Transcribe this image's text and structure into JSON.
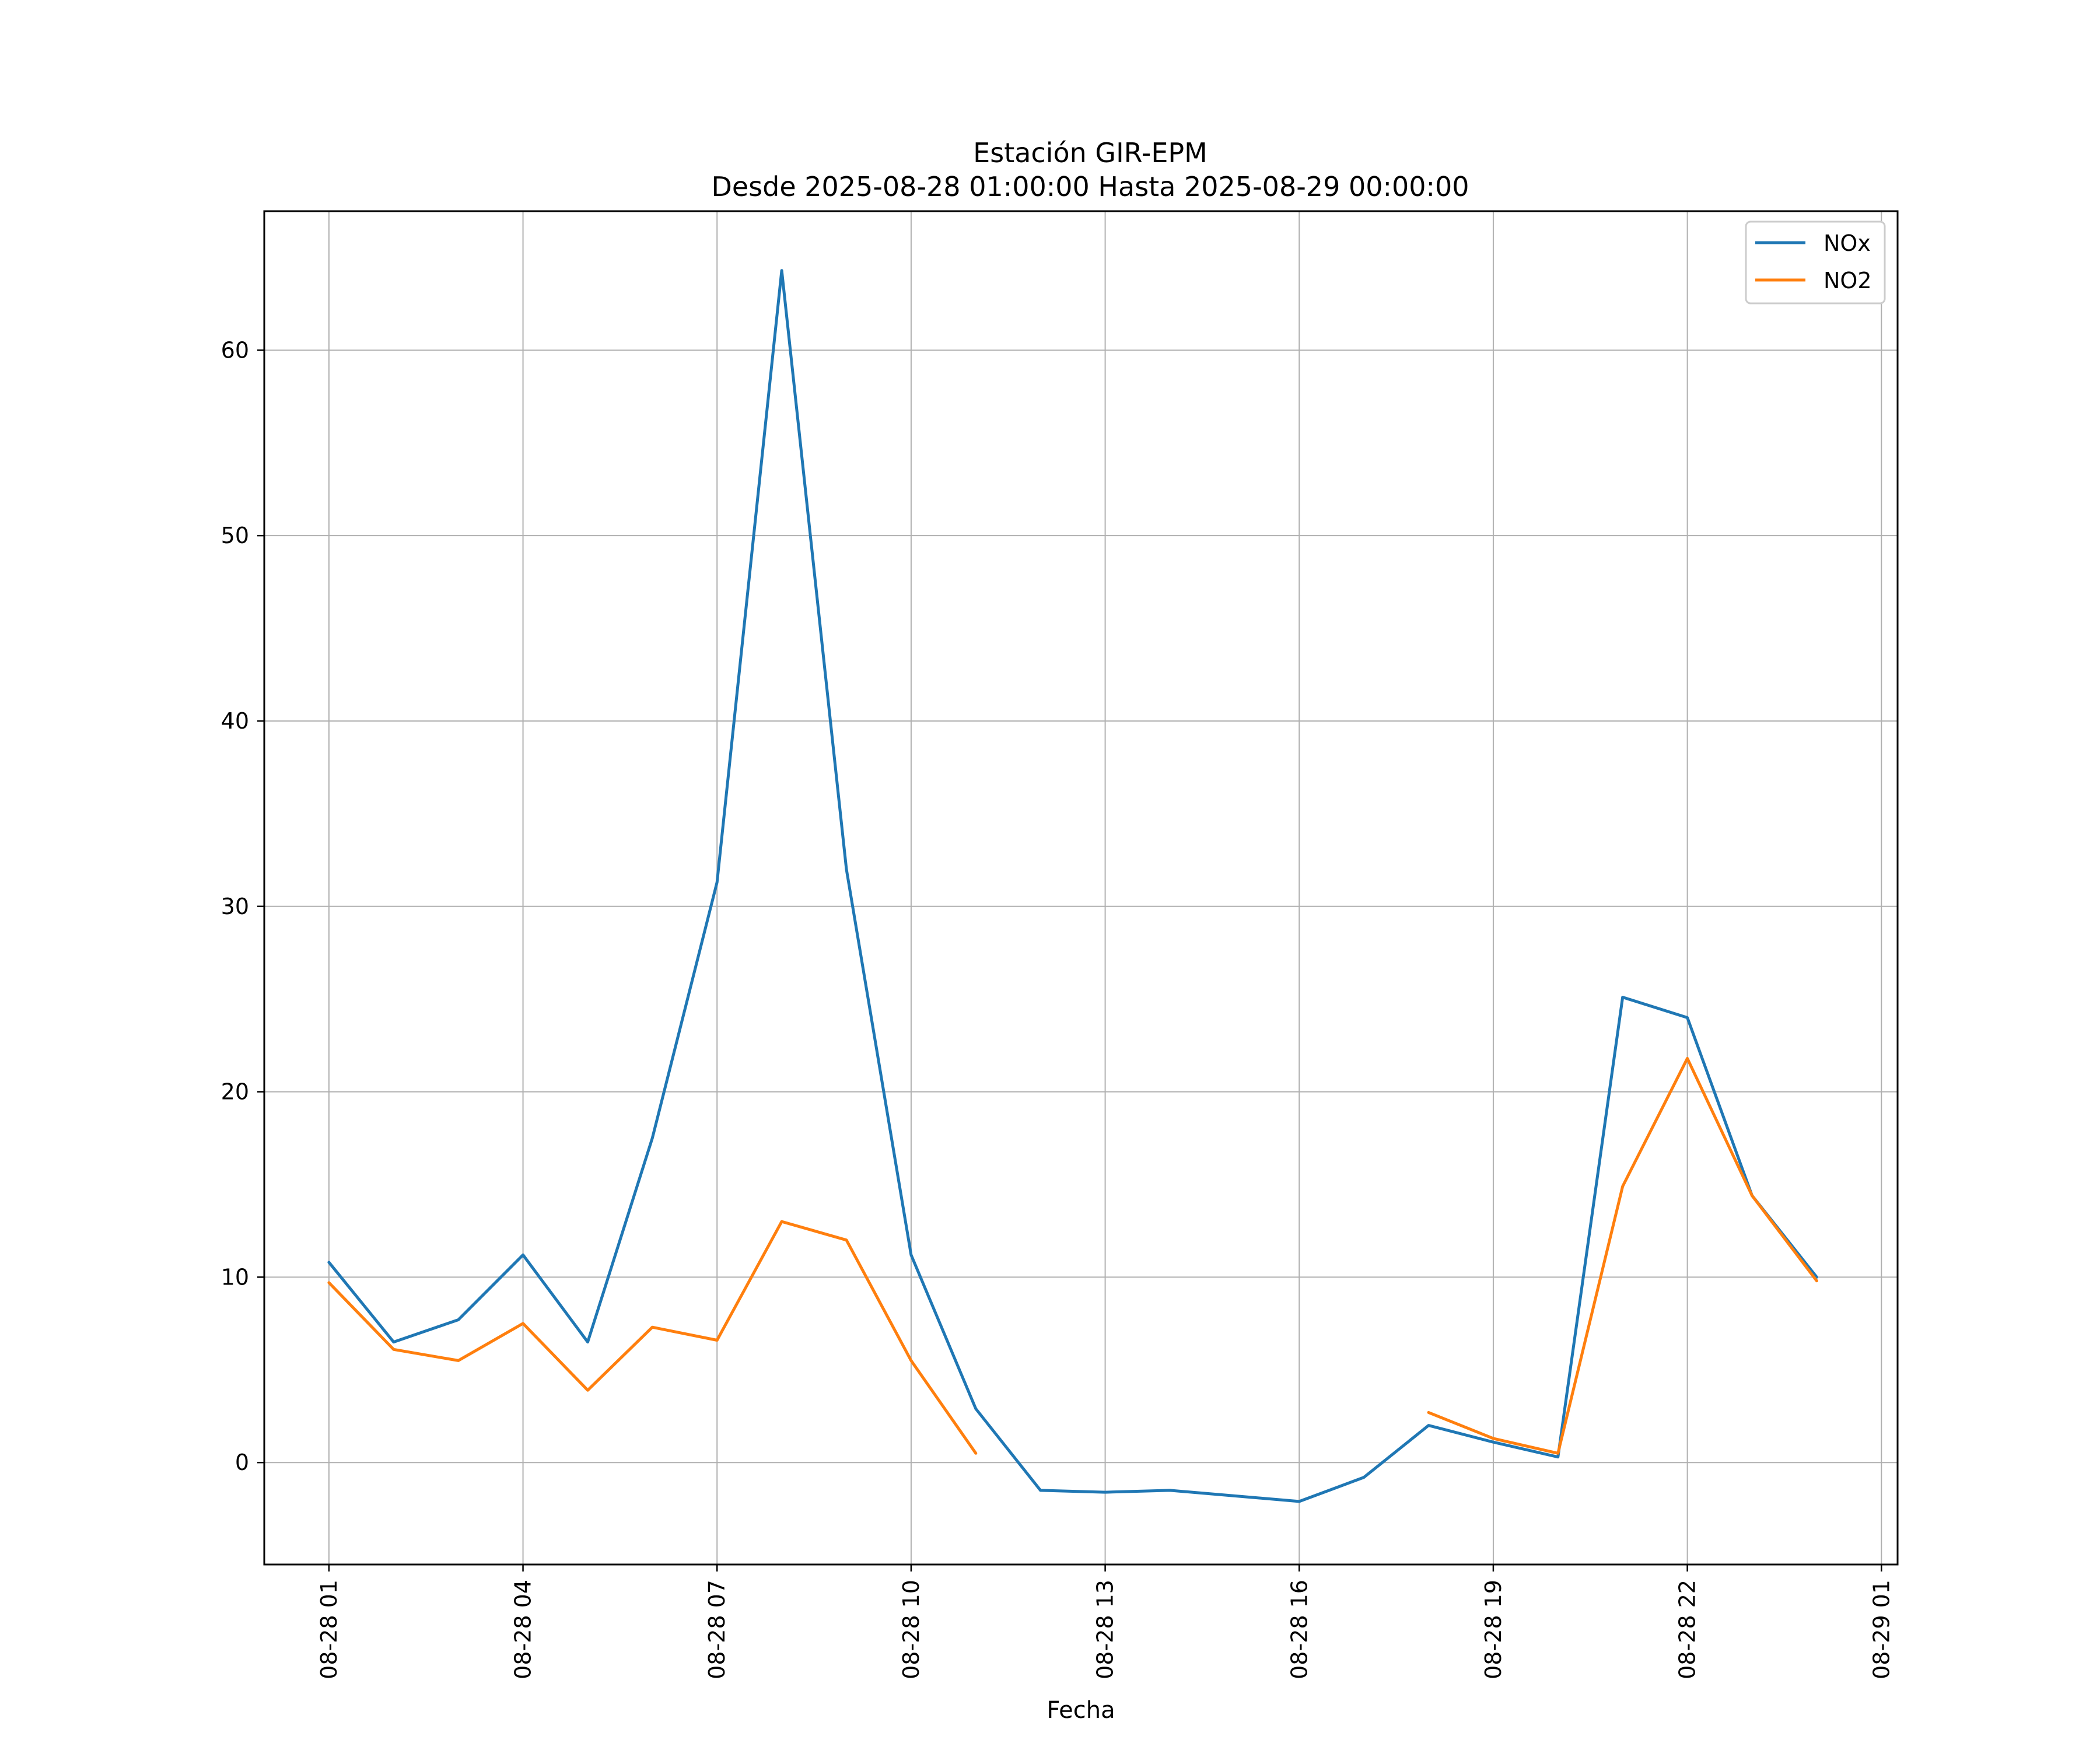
{
  "chart_data": {
    "type": "line",
    "title": "Estación GIR-EPM",
    "subtitle": "Desde 2025-08-28 01:00:00 Hasta 2025-08-29 00:00:00",
    "xlabel": "Fecha",
    "ylabel": "",
    "x": [
      "2025-08-28 01:00",
      "2025-08-28 02:00",
      "2025-08-28 03:00",
      "2025-08-28 04:00",
      "2025-08-28 05:00",
      "2025-08-28 06:00",
      "2025-08-28 07:00",
      "2025-08-28 08:00",
      "2025-08-28 09:00",
      "2025-08-28 10:00",
      "2025-08-28 11:00",
      "2025-08-28 12:00",
      "2025-08-28 13:00",
      "2025-08-28 14:00",
      "2025-08-28 15:00",
      "2025-08-28 16:00",
      "2025-08-28 17:00",
      "2025-08-28 18:00",
      "2025-08-28 19:00",
      "2025-08-28 20:00",
      "2025-08-28 21:00",
      "2025-08-28 22:00",
      "2025-08-28 23:00",
      "2025-08-29 00:00"
    ],
    "xlim": [
      "2025-08-28 00:00",
      "2025-08-29 01:15"
    ],
    "ylim": [
      -5.5,
      67.5
    ],
    "yticks": [
      0,
      10,
      20,
      30,
      40,
      50,
      60
    ],
    "xticks": [
      {
        "value": "2025-08-28 01:00",
        "label": "08-28 01"
      },
      {
        "value": "2025-08-28 04:00",
        "label": "08-28 04"
      },
      {
        "value": "2025-08-28 07:00",
        "label": "08-28 07"
      },
      {
        "value": "2025-08-28 10:00",
        "label": "08-28 10"
      },
      {
        "value": "2025-08-28 13:00",
        "label": "08-28 13"
      },
      {
        "value": "2025-08-28 16:00",
        "label": "08-28 16"
      },
      {
        "value": "2025-08-28 19:00",
        "label": "08-28 19"
      },
      {
        "value": "2025-08-28 22:00",
        "label": "08-28 22"
      },
      {
        "value": "2025-08-29 01:00",
        "label": "08-29 01"
      }
    ],
    "grid": true,
    "legend_position": "top-right",
    "series": [
      {
        "name": "NOx",
        "color": "#1f77b4",
        "values": [
          10.8,
          6.5,
          7.7,
          11.2,
          6.5,
          17.5,
          31.3,
          64.3,
          32.0,
          11.2,
          2.9,
          -1.5,
          -1.6,
          -1.5,
          -1.8,
          -2.1,
          -0.8,
          2.0,
          1.1,
          0.3,
          25.1,
          24.0,
          14.4,
          10.0
        ]
      },
      {
        "name": "NO2",
        "color": "#ff7f0e",
        "values": [
          9.7,
          6.1,
          5.5,
          7.5,
          3.9,
          7.3,
          6.6,
          13.0,
          12.0,
          5.5,
          0.5,
          null,
          null,
          null,
          null,
          null,
          null,
          2.7,
          1.3,
          0.5,
          14.9,
          21.8,
          14.4,
          9.8
        ]
      }
    ]
  }
}
